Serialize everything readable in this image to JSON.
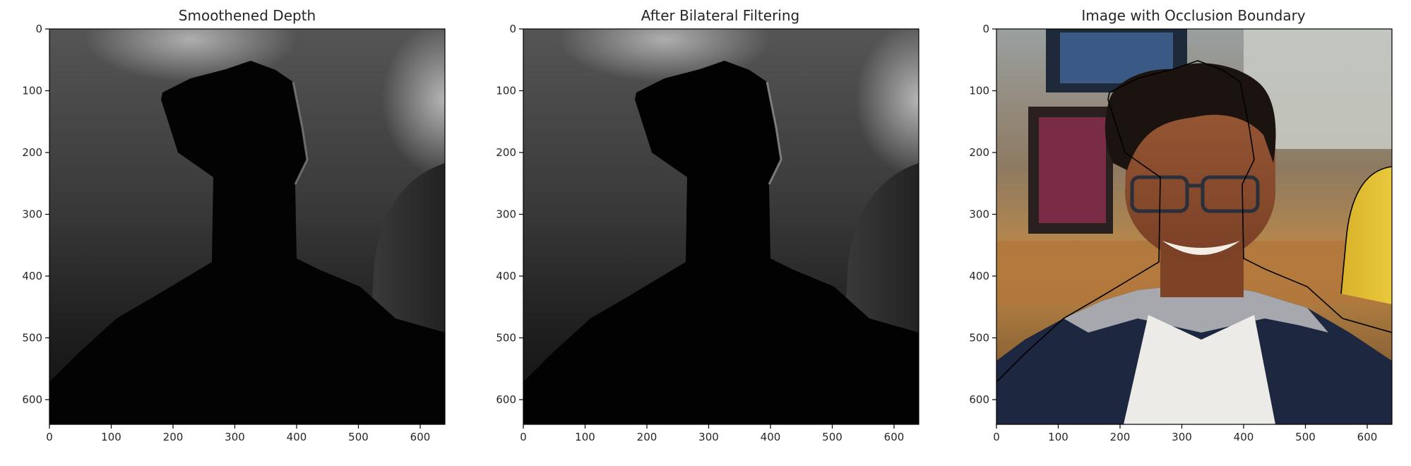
{
  "figure": {
    "background": "#ffffff",
    "axis_color": "#000000",
    "text_color": "#262626"
  },
  "chart_data": [
    {
      "type": "heatmap",
      "title": "Smoothened Depth",
      "xlabel": "",
      "ylabel": "",
      "xlim": [
        0,
        640
      ],
      "ylim": [
        640,
        0
      ],
      "xticks": [
        0,
        100,
        200,
        300,
        400,
        500,
        600
      ],
      "yticks": [
        0,
        100,
        200,
        300,
        400,
        500,
        600
      ],
      "grid": false,
      "colormap": "gray",
      "content": "depth-map"
    },
    {
      "type": "heatmap",
      "title": "After Bilateral Filtering",
      "xlabel": "",
      "ylabel": "",
      "xlim": [
        0,
        640
      ],
      "ylim": [
        640,
        0
      ],
      "xticks": [
        0,
        100,
        200,
        300,
        400,
        500,
        600
      ],
      "yticks": [
        0,
        100,
        200,
        300,
        400,
        500,
        600
      ],
      "grid": false,
      "colormap": "gray",
      "content": "depth-map"
    },
    {
      "type": "heatmap",
      "title": "Image with Occlusion Boundary",
      "xlabel": "",
      "ylabel": "",
      "xlim": [
        0,
        640
      ],
      "ylim": [
        640,
        0
      ],
      "xticks": [
        0,
        100,
        200,
        300,
        400,
        500,
        600
      ],
      "yticks": [
        0,
        100,
        200,
        300,
        400,
        500,
        600
      ],
      "grid": false,
      "colormap": "rgb",
      "content": "photo-with-boundary"
    }
  ]
}
